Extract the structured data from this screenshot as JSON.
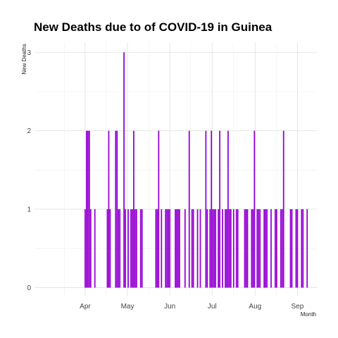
{
  "chart_data": {
    "type": "bar",
    "title": "New Deaths due to of COVID-19 in Guinea",
    "xlabel": "Month",
    "ylabel": "New Deaths",
    "x_ticks": [
      "Apr",
      "May",
      "Jun",
      "Jul",
      "Aug",
      "Sep"
    ],
    "y_ticks": [
      0,
      1,
      2,
      3
    ],
    "xlim": [
      "2020-03-11",
      "2020-09-30"
    ],
    "ylim": [
      0,
      3.15
    ],
    "grid": true,
    "bar_color": "#9400d3",
    "series": [
      {
        "x": [
          "2020-04-16",
          "2020-04-17",
          "2020-04-18",
          "2020-04-19",
          "2020-04-20",
          "2020-04-23",
          "2020-05-02",
          "2020-05-03",
          "2020-05-04",
          "2020-05-08",
          "2020-05-09",
          "2020-05-10",
          "2020-05-11",
          "2020-05-14",
          "2020-05-15",
          "2020-05-17",
          "2020-05-19",
          "2020-05-20",
          "2020-05-21",
          "2020-05-22",
          "2020-05-23",
          "2020-05-26",
          "2020-05-27",
          "2020-06-06",
          "2020-06-07",
          "2020-06-08",
          "2020-06-10",
          "2020-06-13",
          "2020-06-14",
          "2020-06-15",
          "2020-06-16",
          "2020-06-20",
          "2020-06-21",
          "2020-06-22",
          "2020-06-23",
          "2020-06-27",
          "2020-06-30",
          "2020-07-02",
          "2020-07-03",
          "2020-07-06",
          "2020-07-08",
          "2020-07-12",
          "2020-07-13",
          "2020-07-15",
          "2020-07-16",
          "2020-07-17",
          "2020-07-18",
          "2020-07-19",
          "2020-07-21",
          "2020-07-22",
          "2020-07-24",
          "2020-07-26",
          "2020-07-27",
          "2020-07-28",
          "2020-07-29",
          "2020-07-30",
          "2020-08-01",
          "2020-08-03",
          "2020-08-04",
          "2020-08-09",
          "2020-08-10",
          "2020-08-11",
          "2020-08-14",
          "2020-08-15",
          "2020-08-16",
          "2020-08-18",
          "2020-08-19",
          "2020-08-20",
          "2020-08-23",
          "2020-08-24",
          "2020-08-25",
          "2020-08-28",
          "2020-08-31",
          "2020-09-01",
          "2020-09-04",
          "2020-09-05",
          "2020-09-06",
          "2020-09-11",
          "2020-09-12",
          "2020-09-15",
          "2020-09-16",
          "2020-09-19",
          "2020-09-20",
          "2020-09-23"
        ],
        "values": [
          1,
          2,
          2,
          2,
          1,
          1,
          1,
          2,
          1,
          2,
          2,
          1,
          1,
          3,
          1,
          1,
          1,
          1,
          2,
          1,
          1,
          1,
          1,
          1,
          1,
          2,
          1,
          1,
          1,
          1,
          1,
          1,
          1,
          1,
          1,
          1,
          2,
          1,
          1,
          1,
          1,
          2,
          1,
          1,
          2,
          1,
          1,
          1,
          1,
          2,
          1,
          1,
          1,
          2,
          1,
          1,
          1,
          1,
          1,
          1,
          1,
          1,
          1,
          1,
          2,
          1,
          1,
          1,
          1,
          1,
          1,
          1,
          1,
          1,
          1,
          1,
          2,
          1,
          1,
          1,
          1,
          1,
          1,
          1
        ]
      }
    ]
  }
}
